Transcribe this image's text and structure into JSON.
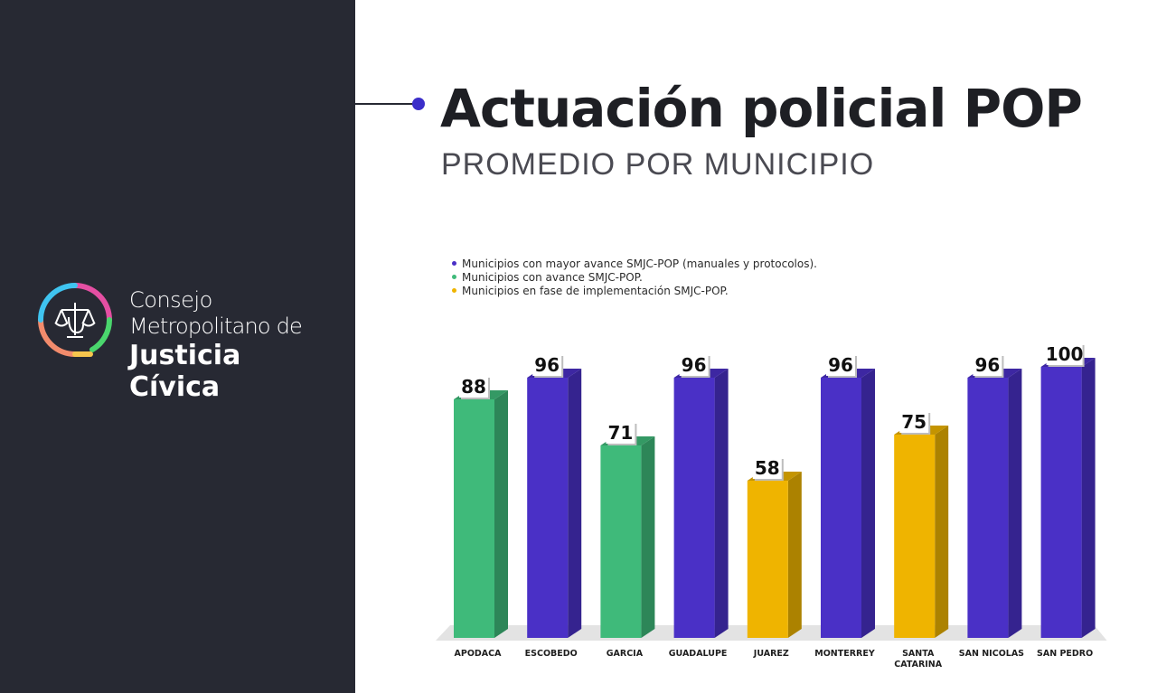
{
  "sidebar": {
    "brand": {
      "line1": "Consejo",
      "line2": "Metropolitano de",
      "line3": "Justicia",
      "line4": "Cívica"
    },
    "logo_icon": "scales-of-justice-icon"
  },
  "header": {
    "title": "Actuación policial POP",
    "subtitle": "PROMEDIO POR MUNICIPIO"
  },
  "colors": {
    "sidebar_bg": "#272933",
    "accent": "#3b2ec9",
    "mayor_avance": "#4a30c6",
    "avance": "#3fba7a",
    "implementacion": "#efb400"
  },
  "chart_data": {
    "type": "bar",
    "title": "Actuación policial POP",
    "subtitle": "PROMEDIO POR MUNICIPIO",
    "style": "3d",
    "ylim": [
      0,
      100
    ],
    "grid": false,
    "legend_position": "top-left",
    "legend": [
      {
        "label": "Municipios con mayor avance SMJC-POP (manuales y protocolos).",
        "group": "mayor",
        "color": "#4a30c6"
      },
      {
        "label": "Municipios con avance SMJC-POP.",
        "group": "avance",
        "color": "#3fba7a"
      },
      {
        "label": "Municipios en fase de implementación SMJC-POP.",
        "group": "fase",
        "color": "#efb400"
      }
    ],
    "categories": [
      "APODACA",
      "ESCOBEDO",
      "GARCIA",
      "GUADALUPE",
      "JUAREZ",
      "MONTERREY",
      "SANTA CATARINA",
      "SAN NICOLAS",
      "SAN PEDRO"
    ],
    "category_lines": [
      [
        "APODACA"
      ],
      [
        "ESCOBEDO"
      ],
      [
        "GARCIA"
      ],
      [
        "GUADALUPE"
      ],
      [
        "JUAREZ"
      ],
      [
        "MONTERREY"
      ],
      [
        "SANTA",
        "CATARINA"
      ],
      [
        "SAN NICOLAS"
      ],
      [
        "SAN PEDRO"
      ]
    ],
    "values": [
      88,
      96,
      71,
      96,
      58,
      96,
      75,
      96,
      100
    ],
    "groups": [
      "avance",
      "mayor",
      "avance",
      "mayor",
      "fase",
      "mayor",
      "fase",
      "mayor",
      "mayor"
    ]
  }
}
